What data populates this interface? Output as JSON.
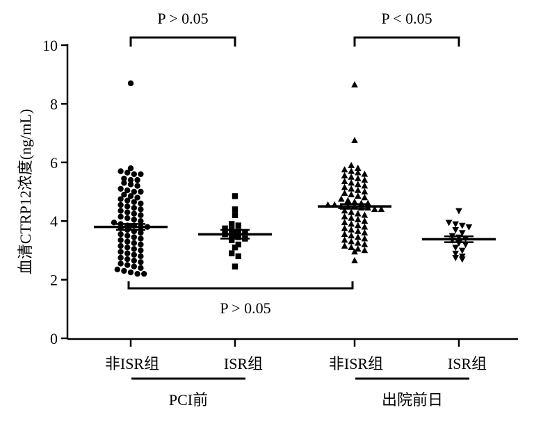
{
  "chart_data": {
    "type": "scatter",
    "title": "",
    "ylabel": "血清CTRP12浓度(ng/mL)",
    "ylim": [
      0,
      10
    ],
    "yticks": [
      "0",
      "2",
      "4",
      "6",
      "8",
      "10"
    ],
    "groups": [
      {
        "label": "PCI前",
        "categories": [
          0,
          1
        ]
      },
      {
        "label": "出院前日",
        "categories": [
          2,
          3
        ]
      }
    ],
    "categories": [
      {
        "label": "非ISR组",
        "marker": "circle",
        "mean": 3.8,
        "sem": 0.1,
        "values": [
          8.7,
          5.8,
          5.7,
          5.65,
          5.6,
          5.6,
          5.45,
          5.4,
          5.4,
          5.3,
          5.25,
          5.2,
          5.1,
          5.05,
          5.0,
          5.0,
          4.9,
          4.85,
          4.8,
          4.75,
          4.7,
          4.65,
          4.6,
          4.55,
          4.5,
          4.45,
          4.4,
          4.35,
          4.3,
          4.25,
          4.2,
          4.15,
          4.1,
          4.05,
          4.0,
          3.95,
          3.9,
          3.85,
          3.85,
          3.8,
          3.8,
          3.75,
          3.7,
          3.65,
          3.6,
          3.55,
          3.5,
          3.45,
          3.4,
          3.35,
          3.3,
          3.25,
          3.2,
          3.15,
          3.1,
          3.05,
          3.0,
          2.95,
          2.9,
          2.85,
          2.8,
          2.75,
          2.7,
          2.65,
          2.6,
          2.55,
          2.5,
          2.45,
          2.4,
          2.35,
          2.3,
          2.25,
          2.2,
          2.2
        ]
      },
      {
        "label": "ISR组",
        "marker": "square",
        "mean": 3.55,
        "sem": 0.15,
        "values": [
          4.85,
          4.4,
          4.2,
          3.9,
          3.85,
          3.75,
          3.7,
          3.65,
          3.6,
          3.55,
          3.5,
          3.45,
          3.4,
          3.35,
          3.2,
          3.1,
          2.9,
          2.8,
          2.45
        ]
      },
      {
        "label": "非ISR组",
        "marker": "triangle-up",
        "mean": 4.5,
        "sem": 0.08,
        "values": [
          8.65,
          6.75,
          5.9,
          5.8,
          5.75,
          5.7,
          5.65,
          5.6,
          5.55,
          5.5,
          5.45,
          5.4,
          5.35,
          5.3,
          5.25,
          5.2,
          5.15,
          5.1,
          5.05,
          5.0,
          4.95,
          4.9,
          4.85,
          4.8,
          4.75,
          4.7,
          4.65,
          4.6,
          4.6,
          4.55,
          4.55,
          4.5,
          4.5,
          4.5,
          4.45,
          4.45,
          4.4,
          4.4,
          4.35,
          4.3,
          4.25,
          4.2,
          4.15,
          4.1,
          4.05,
          4.0,
          3.95,
          3.9,
          3.85,
          3.8,
          3.75,
          3.7,
          3.65,
          3.6,
          3.55,
          3.5,
          3.45,
          3.4,
          3.35,
          3.3,
          3.25,
          3.2,
          3.15,
          3.1,
          3.05,
          3.0,
          2.95,
          2.65
        ]
      },
      {
        "label": "ISR组",
        "marker": "triangle-down",
        "mean": 3.38,
        "sem": 0.1,
        "values": [
          4.35,
          3.95,
          3.9,
          3.85,
          3.8,
          3.7,
          3.6,
          3.5,
          3.45,
          3.4,
          3.35,
          3.25,
          3.2,
          3.1,
          3.0,
          2.9,
          2.8,
          2.75,
          2.7
        ]
      }
    ],
    "comparisons": [
      {
        "from": 0,
        "to": 1,
        "label": "P > 0.05",
        "position": "top"
      },
      {
        "from": 2,
        "to": 3,
        "label": "P < 0.05",
        "position": "top"
      },
      {
        "from": 0,
        "to": 2,
        "label": "P > 0.05",
        "position": "below"
      }
    ]
  }
}
